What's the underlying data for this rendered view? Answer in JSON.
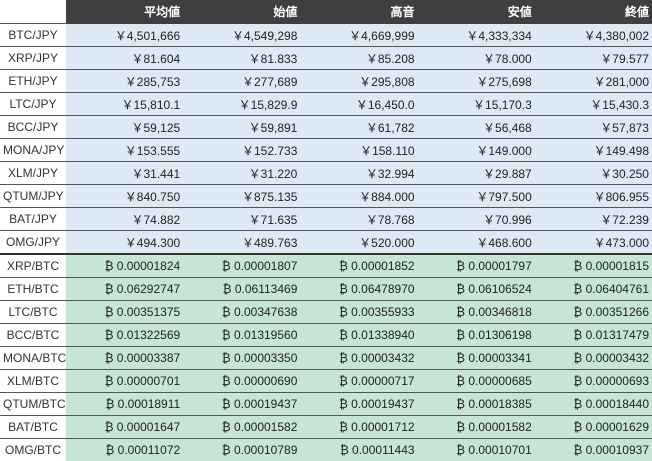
{
  "table": {
    "header": [
      "",
      "平均値",
      "始値",
      "高音",
      "安値",
      "終値"
    ],
    "sections": [
      {
        "rows": [
          [
            "BTC/JPY",
            "￥4,501,666",
            "￥4,549,298",
            "￥4,669,999",
            "￥4,333,334",
            "￥4,380,002"
          ],
          [
            "XRP/JPY",
            "￥81.604",
            "￥81.833",
            "￥85.208",
            "￥78.000",
            "￥79.577"
          ],
          [
            "ETH/JPY",
            "￥285,753",
            "￥277,689",
            "￥295,808",
            "￥275,698",
            "￥281,000"
          ],
          [
            "LTC/JPY",
            "￥15,810.1",
            "￥15,829.9",
            "￥16,450.0",
            "￥15,170.3",
            "￥15,430.3"
          ],
          [
            "BCC/JPY",
            "￥59,125",
            "￥59,891",
            "￥61,782",
            "￥56,468",
            "￥57,873"
          ],
          [
            "MONA/JPY",
            "￥153.555",
            "￥152.733",
            "￥158.110",
            "￥149.000",
            "￥149.498"
          ],
          [
            "XLM/JPY",
            "￥31.441",
            "￥31.220",
            "￥32.994",
            "￥29.887",
            "￥30.250"
          ],
          [
            "QTUM/JPY",
            "￥840.750",
            "￥875.135",
            "￥884.000",
            "￥797.500",
            "￥806.955"
          ],
          [
            "BAT/JPY",
            "￥74.882",
            "￥71.635",
            "￥78.768",
            "￥70.996",
            "￥72.239"
          ],
          [
            "OMG/JPY",
            "￥494.300",
            "￥489.763",
            "￥520.000",
            "￥468.600",
            "￥473.000"
          ]
        ]
      },
      {
        "rows": [
          [
            "XRP/BTC",
            "₿ 0.00001824",
            "₿ 0.00001807",
            "₿ 0.00001852",
            "₿ 0.00001797",
            "₿ 0.00001815"
          ],
          [
            "ETH/BTC",
            "₿ 0.06292747",
            "₿ 0.06113469",
            "₿ 0.06478970",
            "₿ 0.06106524",
            "₿ 0.06404761"
          ],
          [
            "LTC/BTC",
            "₿ 0.00351375",
            "₿ 0.00347638",
            "₿ 0.00355933",
            "₿ 0.00346818",
            "₿ 0.00351266"
          ],
          [
            "BCC/BTC",
            "₿ 0.01322569",
            "₿ 0.01319560",
            "₿ 0.01338940",
            "₿ 0.01306198",
            "₿ 0.01317479"
          ],
          [
            "MONA/BTC",
            "₿ 0.00003387",
            "₿ 0.00003350",
            "₿ 0.00003432",
            "₿ 0.00003341",
            "₿ 0.00003432"
          ],
          [
            "XLM/BTC",
            "₿ 0.00000701",
            "₿ 0.00000690",
            "₿ 0.00000717",
            "₿ 0.00000685",
            "₿ 0.00000693"
          ],
          [
            "QTUM/BTC",
            "₿ 0.00018911",
            "₿ 0.00019437",
            "₿ 0.00019437",
            "₿ 0.00018385",
            "₿ 0.00018440"
          ],
          [
            "BAT/BTC",
            "₿ 0.00001647",
            "₿ 0.00001582",
            "₿ 0.00001712",
            "₿ 0.00001582",
            "₿ 0.00001629"
          ],
          [
            "OMG/BTC",
            "₿ 0.00011072",
            "₿ 0.00010789",
            "₿ 0.00011443",
            "₿ 0.00010701",
            "₿ 0.00010937"
          ]
        ]
      }
    ]
  }
}
